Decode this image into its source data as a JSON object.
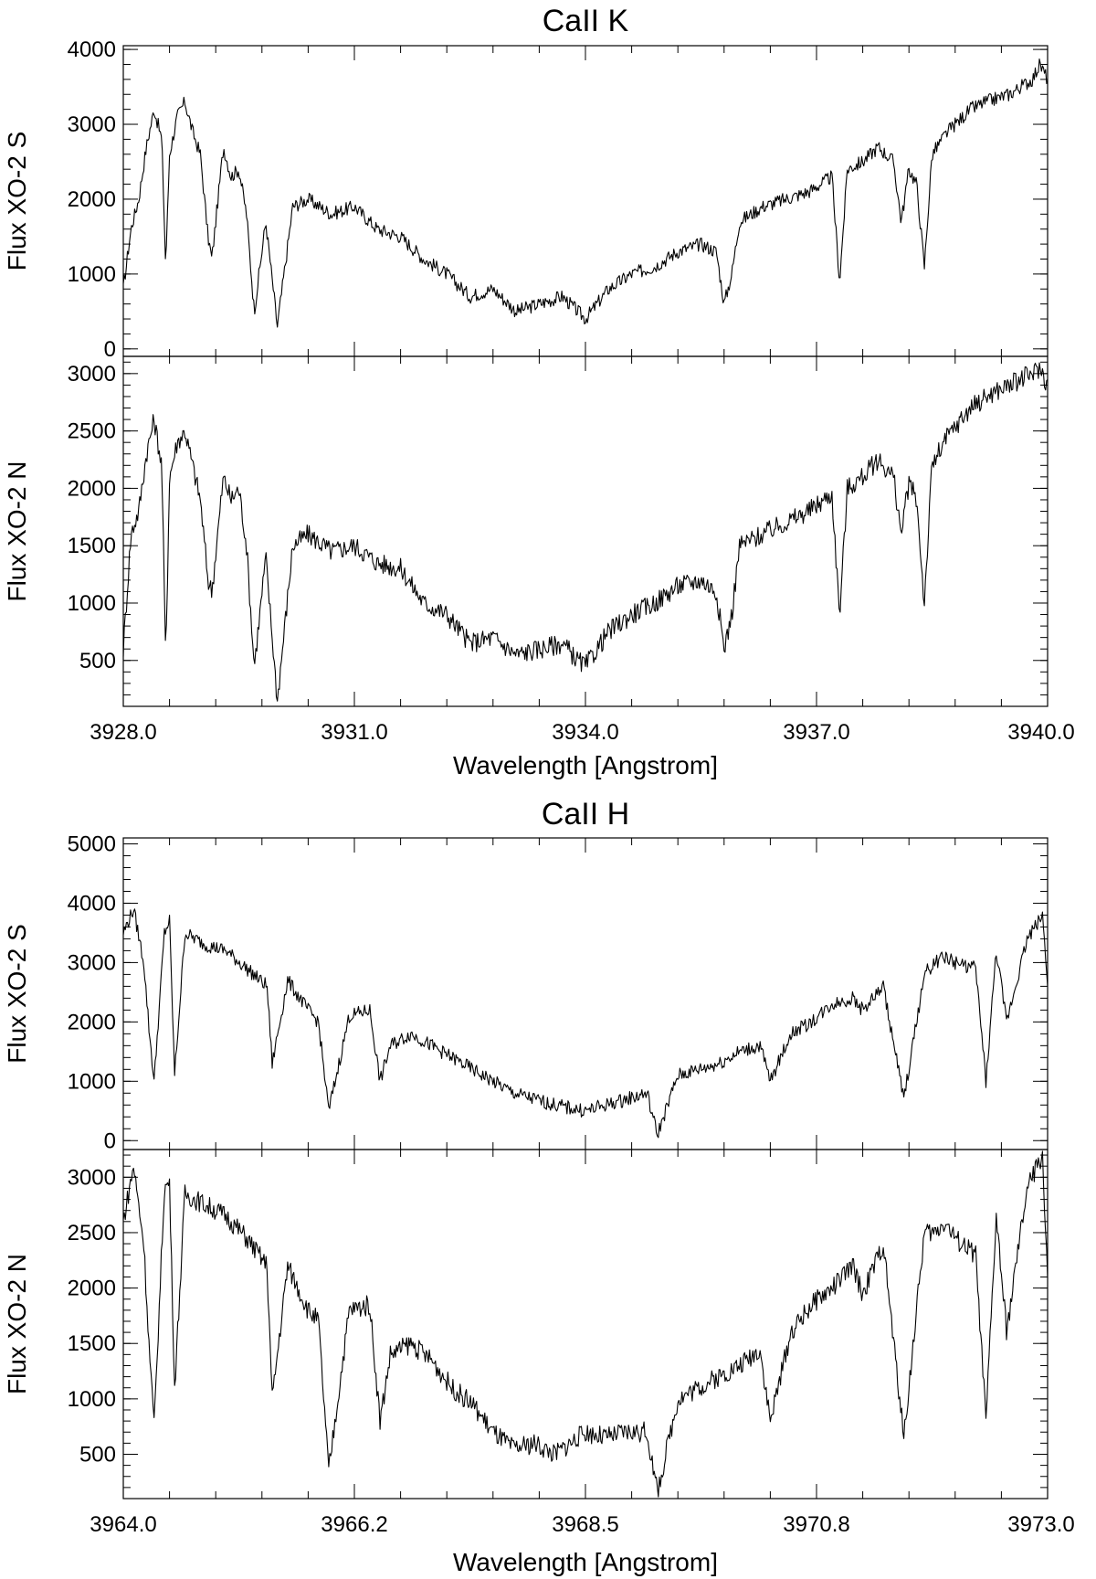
{
  "figure": {
    "groups": [
      {
        "title": "CaII K",
        "xlabel": "Wavelength [Angstrom]",
        "xlim": [
          3928.0,
          3940.0
        ],
        "xticks": [
          3928.0,
          3931.0,
          3934.0,
          3937.0,
          3940.0
        ],
        "xtick_labels": [
          "3928.0",
          "3931.0",
          "3934.0",
          "3937.0",
          "3940.0"
        ]
      },
      {
        "title": "CaII H",
        "xlabel": "Wavelength [Angstrom]",
        "xlim": [
          3964.0,
          3973.0
        ],
        "xticks": [
          3964.0,
          3966.25,
          3968.5,
          3970.75,
          3973.0
        ],
        "xtick_labels": [
          "3964.0",
          "3966.2",
          "3968.5",
          "3970.8",
          "3973.0"
        ]
      }
    ]
  },
  "chart_data": [
    {
      "type": "line",
      "group": "CaII K",
      "ylabel": "Flux XO-2 S",
      "xlim": [
        3928.0,
        3940.0
      ],
      "ylim": [
        -100,
        4050
      ],
      "yticks": [
        0,
        1000,
        2000,
        3000,
        4000
      ],
      "ytick_labels": [
        "0",
        "1000",
        "2000",
        "3000",
        "4000"
      ],
      "series": [
        {
          "x": [
            3928.0,
            3928.1,
            3928.2,
            3928.3,
            3928.4,
            3928.5,
            3928.55,
            3928.6,
            3928.7,
            3928.8,
            3928.9,
            3929.0,
            3929.1,
            3929.15,
            3929.3,
            3929.4,
            3929.5,
            3929.6,
            3929.7,
            3929.85,
            3930.0,
            3930.2,
            3930.4,
            3930.7,
            3931.0,
            3931.3,
            3931.6,
            3931.9,
            3932.2,
            3932.5,
            3932.8,
            3933.1,
            3933.4,
            3933.7,
            3933.9,
            3934.0,
            3934.3,
            3934.6,
            3934.9,
            3935.2,
            3935.5,
            3935.7,
            3935.8,
            3935.9,
            3936.0,
            3936.3,
            3936.6,
            3936.9,
            3937.2,
            3937.3,
            3937.4,
            3937.6,
            3937.8,
            3938.0,
            3938.1,
            3938.2,
            3938.3,
            3938.4,
            3938.5,
            3938.7,
            3939.0,
            3939.2,
            3939.5,
            3939.8,
            3939.9,
            3940.0
          ],
          "y": [
            800,
            1600,
            2000,
            2700,
            3200,
            2800,
            1100,
            2600,
            3100,
            3300,
            2900,
            2600,
            1500,
            1200,
            2700,
            2300,
            2400,
            1800,
            500,
            1700,
            300,
            1900,
            2000,
            1800,
            1900,
            1600,
            1500,
            1200,
            1000,
            700,
            800,
            500,
            600,
            700,
            500,
            400,
            800,
            1000,
            1100,
            1300,
            1400,
            1300,
            600,
            1000,
            1700,
            1900,
            2000,
            2100,
            2300,
            900,
            2400,
            2500,
            2700,
            2500,
            1700,
            2400,
            2200,
            1100,
            2600,
            2900,
            3200,
            3300,
            3400,
            3600,
            3800,
            3600
          ]
        }
      ]
    },
    {
      "type": "line",
      "group": "CaII K",
      "ylabel": "Flux XO-2 N",
      "xlim": [
        3928.0,
        3940.0
      ],
      "ylim": [
        100,
        3150
      ],
      "yticks": [
        500,
        1000,
        1500,
        2000,
        2500,
        3000
      ],
      "ytick_labels": [
        "500",
        "1000",
        "1500",
        "2000",
        "2500",
        "3000"
      ],
      "series": [
        {
          "x": [
            3928.0,
            3928.1,
            3928.2,
            3928.3,
            3928.4,
            3928.5,
            3928.55,
            3928.6,
            3928.7,
            3928.8,
            3928.9,
            3929.0,
            3929.1,
            3929.15,
            3929.3,
            3929.4,
            3929.5,
            3929.6,
            3929.7,
            3929.85,
            3930.0,
            3930.2,
            3930.4,
            3930.7,
            3931.0,
            3931.3,
            3931.6,
            3931.9,
            3932.2,
            3932.5,
            3932.8,
            3933.1,
            3933.4,
            3933.7,
            3933.9,
            3934.0,
            3934.3,
            3934.6,
            3934.9,
            3935.2,
            3935.5,
            3935.7,
            3935.8,
            3935.9,
            3936.0,
            3936.3,
            3936.6,
            3936.9,
            3937.2,
            3937.3,
            3937.4,
            3937.6,
            3937.8,
            3938.0,
            3938.1,
            3938.2,
            3938.3,
            3938.4,
            3938.5,
            3938.7,
            3939.0,
            3939.2,
            3939.5,
            3939.8,
            3939.9,
            3940.0
          ],
          "y": [
            600,
            1600,
            1800,
            2300,
            2600,
            2200,
            500,
            2100,
            2400,
            2500,
            2200,
            1900,
            1200,
            1100,
            2100,
            1900,
            2000,
            1500,
            450,
            1400,
            150,
            1500,
            1600,
            1450,
            1500,
            1350,
            1300,
            1000,
            900,
            650,
            700,
            550,
            600,
            650,
            500,
            450,
            750,
            900,
            1000,
            1150,
            1200,
            1100,
            600,
            900,
            1500,
            1600,
            1700,
            1800,
            1950,
            900,
            2000,
            2100,
            2250,
            2100,
            1600,
            2050,
            1900,
            1000,
            2200,
            2450,
            2700,
            2800,
            2900,
            3000,
            3050,
            2900
          ]
        }
      ]
    },
    {
      "type": "line",
      "group": "CaII H",
      "ylabel": "Flux XO-2 S",
      "xlim": [
        3964.0,
        3973.0
      ],
      "ylim": [
        -150,
        5100
      ],
      "yticks": [
        0,
        1000,
        2000,
        3000,
        4000,
        5000
      ],
      "ytick_labels": [
        "0",
        "1000",
        "2000",
        "3000",
        "4000",
        "5000"
      ],
      "series": [
        {
          "x": [
            3964.0,
            3964.1,
            3964.2,
            3964.25,
            3964.3,
            3964.4,
            3964.45,
            3964.5,
            3964.6,
            3964.8,
            3965.0,
            3965.2,
            3965.4,
            3965.45,
            3965.6,
            3965.8,
            3965.9,
            3966.0,
            3966.2,
            3966.4,
            3966.5,
            3966.6,
            3966.8,
            3967.0,
            3967.2,
            3967.4,
            3967.6,
            3967.8,
            3968.0,
            3968.2,
            3968.5,
            3968.7,
            3968.9,
            3969.1,
            3969.2,
            3969.4,
            3969.6,
            3969.8,
            3970.0,
            3970.2,
            3970.3,
            3970.5,
            3970.7,
            3970.9,
            3971.1,
            3971.2,
            3971.4,
            3971.6,
            3971.8,
            3971.9,
            3972.0,
            3972.1,
            3972.3,
            3972.4,
            3972.5,
            3972.6,
            3972.8,
            3972.95,
            3973.0
          ],
          "y": [
            3500,
            3900,
            3000,
            1900,
            1000,
            3500,
            3700,
            1100,
            3500,
            3300,
            3200,
            2900,
            2600,
            1300,
            2700,
            2200,
            2000,
            500,
            2100,
            2200,
            1000,
            1600,
            1800,
            1600,
            1400,
            1200,
            1000,
            800,
            700,
            600,
            500,
            600,
            700,
            800,
            100,
            1100,
            1200,
            1300,
            1500,
            1600,
            1000,
            1800,
            2000,
            2300,
            2400,
            2200,
            2600,
            700,
            2800,
            3000,
            3100,
            3000,
            2900,
            1000,
            3200,
            2000,
            3400,
            3800,
            2700
          ]
        }
      ]
    },
    {
      "type": "line",
      "group": "CaII H",
      "ylabel": "Flux XO-2 N",
      "xlim": [
        3964.0,
        3973.0
      ],
      "ylim": [
        100,
        3250
      ],
      "yticks": [
        500,
        1000,
        1500,
        2000,
        2500,
        3000
      ],
      "ytick_labels": [
        "500",
        "1000",
        "1500",
        "2000",
        "2500",
        "3000"
      ],
      "series": [
        {
          "x": [
            3964.0,
            3964.1,
            3964.2,
            3964.25,
            3964.3,
            3964.4,
            3964.45,
            3964.5,
            3964.6,
            3964.8,
            3965.0,
            3965.2,
            3965.4,
            3965.45,
            3965.6,
            3965.8,
            3965.9,
            3966.0,
            3966.2,
            3966.4,
            3966.5,
            3966.6,
            3966.8,
            3967.0,
            3967.2,
            3967.4,
            3967.6,
            3967.8,
            3968.0,
            3968.2,
            3968.5,
            3968.7,
            3968.9,
            3969.1,
            3969.2,
            3969.4,
            3969.6,
            3969.8,
            3970.0,
            3970.2,
            3970.3,
            3970.5,
            3970.7,
            3970.9,
            3971.1,
            3971.2,
            3971.4,
            3971.6,
            3971.8,
            3971.9,
            3972.0,
            3972.1,
            3972.3,
            3972.4,
            3972.5,
            3972.6,
            3972.8,
            3972.95,
            3973.0
          ],
          "y": [
            2600,
            3100,
            2400,
            1500,
            750,
            2900,
            2950,
            1100,
            2850,
            2750,
            2650,
            2450,
            2200,
            1000,
            2200,
            1800,
            1700,
            350,
            1800,
            1850,
            800,
            1400,
            1500,
            1350,
            1100,
            950,
            700,
            550,
            600,
            500,
            700,
            650,
            700,
            700,
            150,
            1000,
            1100,
            1200,
            1300,
            1450,
            800,
            1600,
            1850,
            2000,
            2200,
            1950,
            2400,
            650,
            2500,
            2500,
            2600,
            2450,
            2300,
            800,
            2650,
            1600,
            2900,
            3200,
            2100
          ]
        }
      ]
    }
  ]
}
